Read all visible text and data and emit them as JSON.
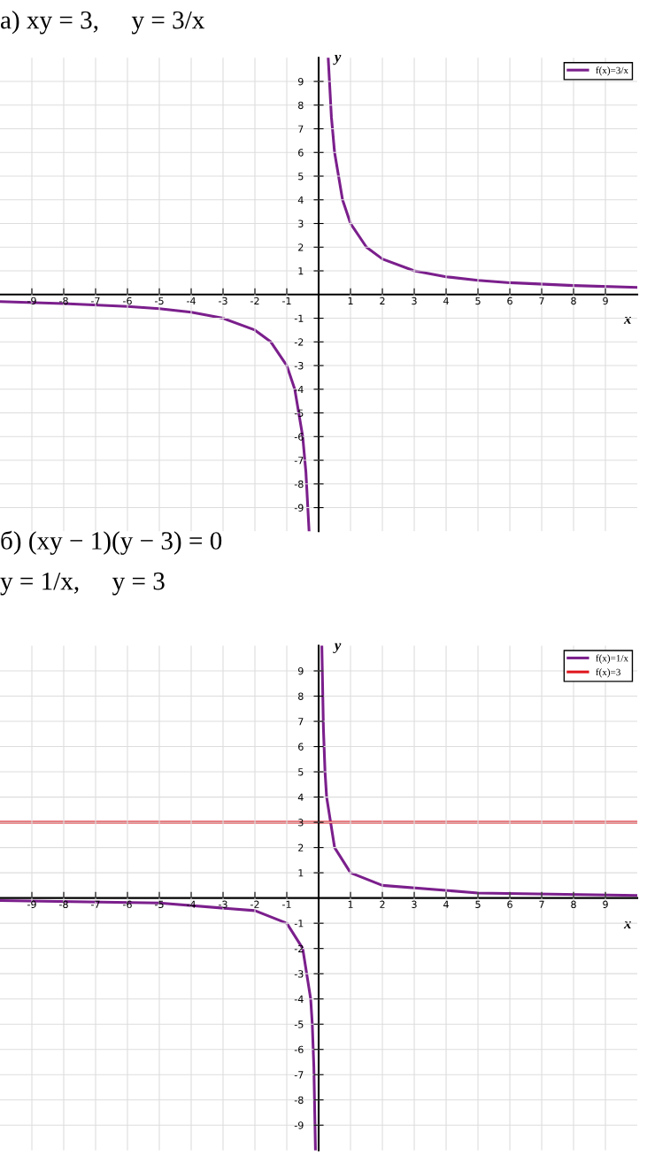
{
  "chart_data": [
    {
      "type": "line",
      "title": "а) xy = 3,     y = 3/x",
      "xlabel": "x",
      "ylabel": "y",
      "xlim": [
        -10,
        10
      ],
      "ylim": [
        -10,
        10
      ],
      "xticks": [
        -9,
        -8,
        -7,
        -6,
        -5,
        -4,
        -3,
        -2,
        -1,
        1,
        2,
        3,
        4,
        5,
        6,
        7,
        8,
        9
      ],
      "yticks": [
        -9,
        -8,
        -7,
        -6,
        -5,
        -4,
        -3,
        -2,
        -1,
        1,
        2,
        3,
        4,
        5,
        6,
        7,
        8,
        9
      ],
      "grid": true,
      "legend": "top right",
      "marker": "none",
      "line_style": "solid",
      "series": [
        {
          "name": "f(x)=3/x",
          "color": "#7b1f8c",
          "x": [
            -10,
            -8,
            -6,
            -5,
            -4,
            -3,
            -2,
            -1.5,
            -1,
            -0.75,
            -0.5,
            -0.4,
            -0.3,
            null,
            0.3,
            0.4,
            0.5,
            0.75,
            1,
            1.5,
            2,
            3,
            4,
            5,
            6,
            8,
            10
          ],
          "values": [
            -0.3,
            -0.38,
            -0.5,
            -0.6,
            -0.75,
            -1,
            -1.5,
            -2,
            -3,
            -4,
            -6,
            -7.5,
            -10,
            null,
            10,
            7.5,
            6,
            4,
            3,
            2,
            1.5,
            1,
            0.75,
            0.6,
            0.5,
            0.38,
            0.3
          ]
        }
      ]
    },
    {
      "type": "line",
      "title": "б) (xy − 1)(y − 3) = 0",
      "subtitle": "y = 1/x,     y = 3",
      "xlabel": "x",
      "ylabel": "y",
      "xlim": [
        -10,
        10
      ],
      "ylim": [
        -10,
        10
      ],
      "xticks": [
        -9,
        -8,
        -7,
        -6,
        -5,
        -4,
        -3,
        -2,
        -1,
        1,
        2,
        3,
        4,
        5,
        6,
        7,
        8,
        9
      ],
      "yticks": [
        -9,
        -8,
        -7,
        -6,
        -5,
        -4,
        -3,
        -2,
        -1,
        1,
        2,
        3,
        4,
        5,
        6,
        7,
        8,
        9
      ],
      "grid": true,
      "legend": "top right",
      "marker": "none",
      "line_style": "solid",
      "series": [
        {
          "name": "f(x)=1/x",
          "color": "#7b1f8c",
          "x": [
            -10,
            -5,
            -2,
            -1,
            -0.5,
            -0.25,
            -0.2,
            -0.15,
            -0.1,
            null,
            0.1,
            0.15,
            0.2,
            0.25,
            0.5,
            1,
            2,
            5,
            10
          ],
          "values": [
            -0.1,
            -0.2,
            -0.5,
            -1,
            -2,
            -4,
            -5,
            -6.7,
            -10,
            null,
            10,
            6.7,
            5,
            4,
            2,
            1,
            0.5,
            0.2,
            0.1
          ]
        },
        {
          "name": "f(x)=3",
          "color": "#e0161e",
          "x": [
            -10,
            10
          ],
          "values": [
            3,
            3
          ]
        }
      ]
    }
  ]
}
